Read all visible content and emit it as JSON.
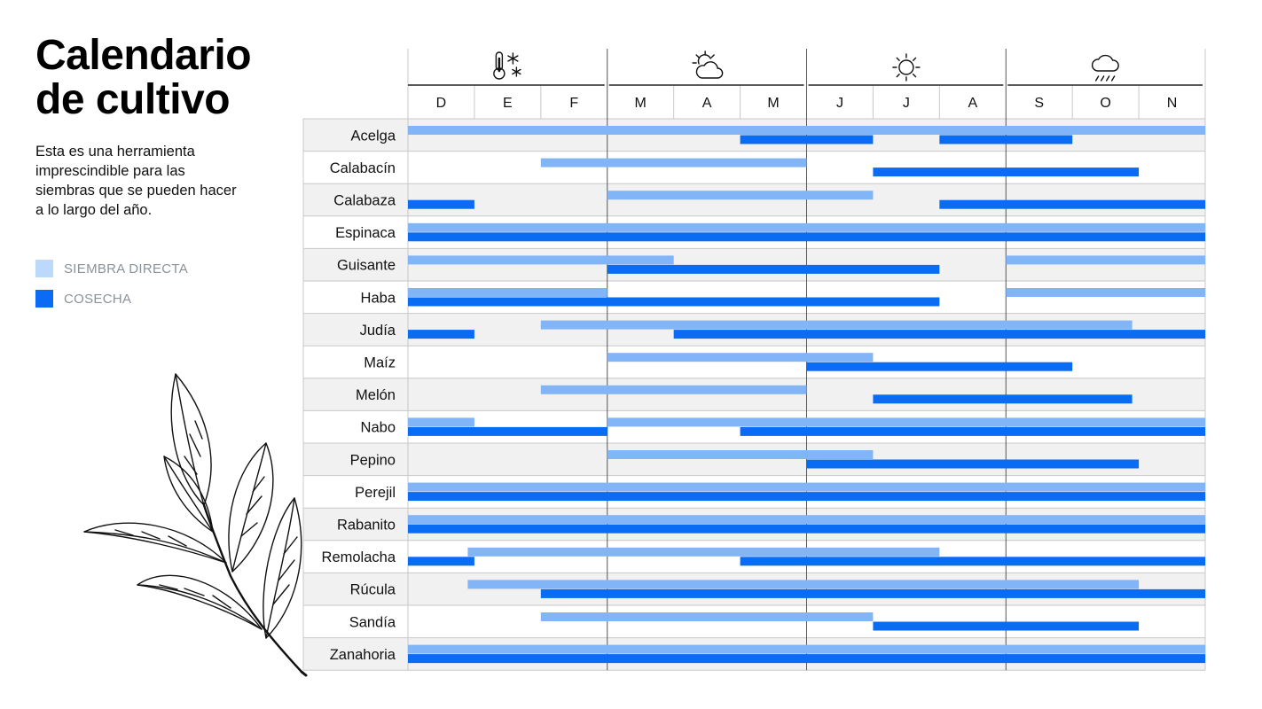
{
  "title_line1": "Calendario",
  "title_line2": "de cultivo",
  "description": "Esta es una herramienta imprescindible para las siembras que se pueden hacer a lo largo del año.",
  "legend": [
    {
      "label": "SIEMBRA DIRECTA",
      "color": "#bcd8fb"
    },
    {
      "label": "COSECHA",
      "color": "#0a6cf2"
    }
  ],
  "colors": {
    "siembra_bar": "#82b4f8",
    "cosecha_bar": "#0a6cf2",
    "row_shade": "#f1f1f1",
    "grid": "#c8c8c8",
    "season_line": "#555555"
  },
  "chart_data": {
    "type": "gantt",
    "title": "Calendario de cultivo",
    "months": [
      "D",
      "E",
      "F",
      "M",
      "A",
      "M",
      "J",
      "J",
      "A",
      "S",
      "O",
      "N"
    ],
    "seasons": [
      {
        "name": "invierno",
        "icon": "thermometer-snow-icon",
        "months": [
          "D",
          "E",
          "F"
        ]
      },
      {
        "name": "primavera",
        "icon": "sun-cloud-icon",
        "months": [
          "M",
          "A",
          "M"
        ]
      },
      {
        "name": "verano",
        "icon": "sun-icon",
        "months": [
          "J",
          "J",
          "A"
        ]
      },
      {
        "name": "otoño",
        "icon": "rain-cloud-icon",
        "months": [
          "S",
          "O",
          "N"
        ]
      }
    ],
    "x_units": "month index (0 = start of D, 12 = end of N)",
    "series": [
      {
        "name": "SIEMBRA DIRECTA",
        "key": "siembra"
      },
      {
        "name": "COSECHA",
        "key": "cosecha"
      }
    ],
    "crops": [
      {
        "name": "Acelga",
        "siembra": [
          [
            0,
            12
          ]
        ],
        "cosecha": [
          [
            5,
            7
          ],
          [
            8,
            10
          ]
        ]
      },
      {
        "name": "Calabacín",
        "siembra": [
          [
            2,
            6
          ]
        ],
        "cosecha": [
          [
            7,
            11
          ]
        ]
      },
      {
        "name": "Calabaza",
        "siembra": [
          [
            3,
            7
          ]
        ],
        "cosecha": [
          [
            0,
            1
          ],
          [
            8,
            12
          ]
        ]
      },
      {
        "name": "Espinaca",
        "siembra": [
          [
            0,
            12
          ]
        ],
        "cosecha": [
          [
            0,
            12
          ]
        ]
      },
      {
        "name": "Guisante",
        "siembra": [
          [
            0,
            4
          ],
          [
            9,
            12
          ]
        ],
        "cosecha": [
          [
            3,
            8
          ]
        ]
      },
      {
        "name": "Haba",
        "siembra": [
          [
            0,
            3
          ],
          [
            9,
            12
          ]
        ],
        "cosecha": [
          [
            0,
            8
          ]
        ]
      },
      {
        "name": "Judía",
        "siembra": [
          [
            2,
            10.9
          ]
        ],
        "cosecha": [
          [
            0,
            1
          ],
          [
            4,
            12
          ]
        ]
      },
      {
        "name": "Maíz",
        "siembra": [
          [
            3,
            7
          ]
        ],
        "cosecha": [
          [
            6,
            10
          ]
        ]
      },
      {
        "name": "Melón",
        "siembra": [
          [
            2,
            6
          ]
        ],
        "cosecha": [
          [
            7,
            10.9
          ]
        ]
      },
      {
        "name": "Nabo",
        "siembra": [
          [
            0,
            1
          ],
          [
            3,
            12
          ]
        ],
        "cosecha": [
          [
            0,
            3
          ],
          [
            5,
            12
          ]
        ]
      },
      {
        "name": "Pepino",
        "siembra": [
          [
            3,
            7
          ]
        ],
        "cosecha": [
          [
            6,
            11
          ]
        ]
      },
      {
        "name": "Perejil",
        "siembra": [
          [
            0,
            12
          ]
        ],
        "cosecha": [
          [
            0,
            12
          ]
        ]
      },
      {
        "name": "Rabanito",
        "siembra": [
          [
            0,
            12
          ]
        ],
        "cosecha": [
          [
            0,
            12
          ]
        ]
      },
      {
        "name": "Remolacha",
        "siembra": [
          [
            0.9,
            8
          ]
        ],
        "cosecha": [
          [
            0,
            1
          ],
          [
            5,
            12
          ]
        ]
      },
      {
        "name": "Rúcula",
        "siembra": [
          [
            0.9,
            11
          ]
        ],
        "cosecha": [
          [
            2,
            12
          ]
        ]
      },
      {
        "name": "Sandía",
        "siembra": [
          [
            2,
            7
          ]
        ],
        "cosecha": [
          [
            7,
            11
          ]
        ]
      },
      {
        "name": "Zanahoria",
        "siembra": [
          [
            0,
            12
          ]
        ],
        "cosecha": [
          [
            0,
            12
          ]
        ]
      }
    ]
  }
}
